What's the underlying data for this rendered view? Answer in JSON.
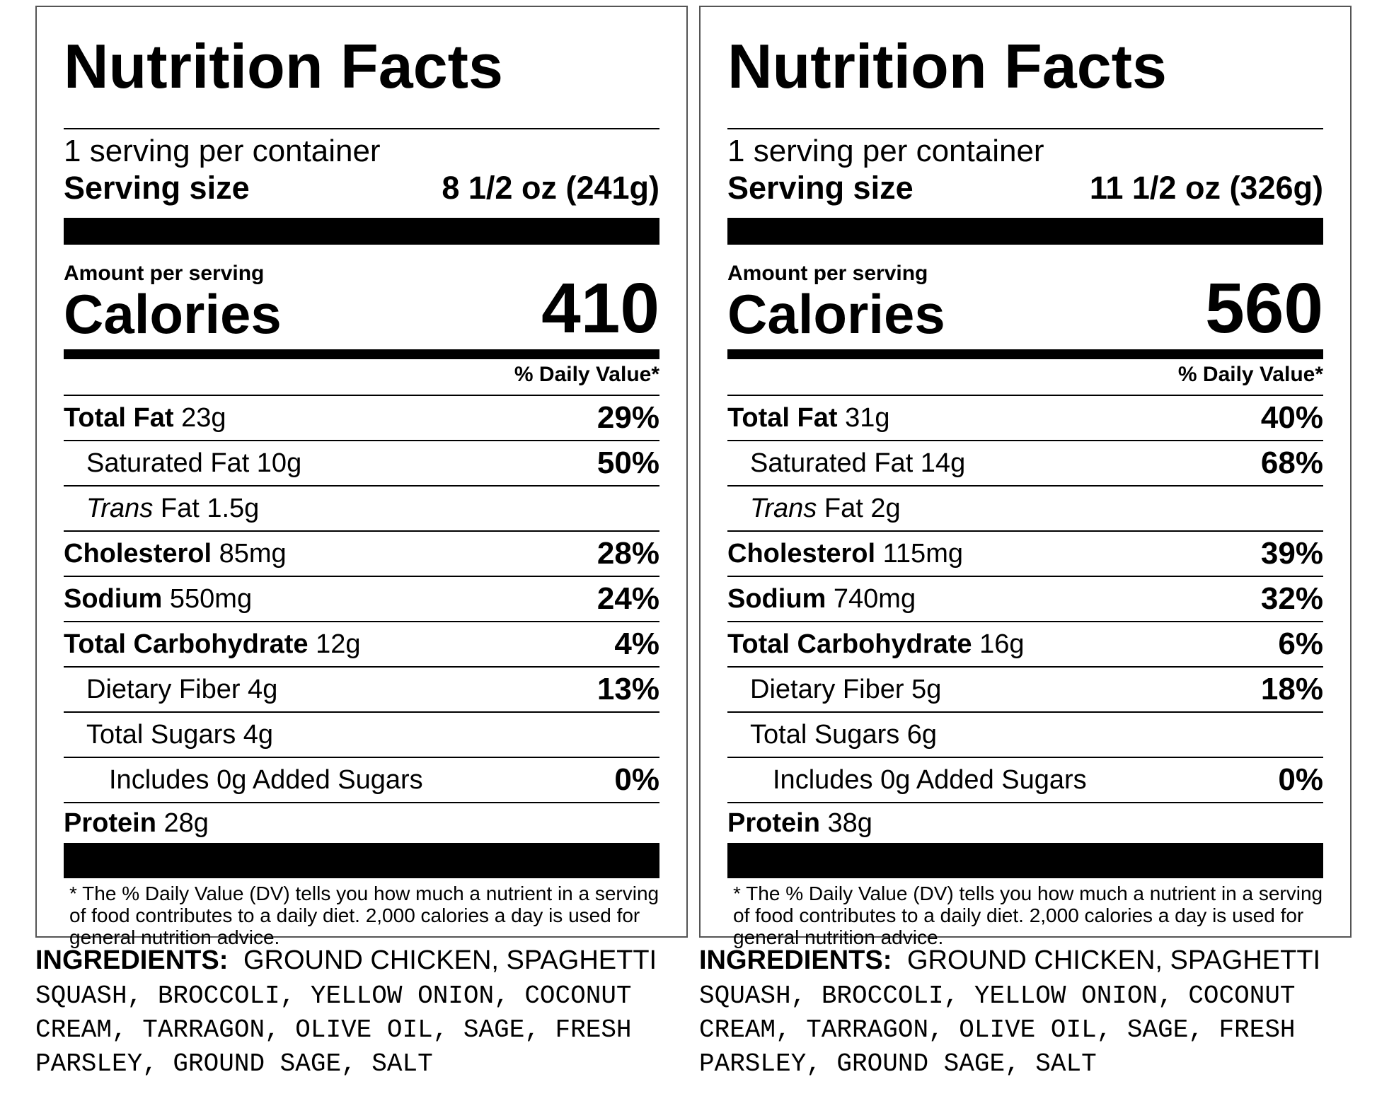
{
  "labels": [
    {
      "title": "Nutrition Facts",
      "servings_per_container": "1 serving per container",
      "serving_size_label": "Serving size",
      "serving_size_value": "8 1/2 oz (241g)",
      "amount_per_serving": "Amount per serving",
      "calories_label": "Calories",
      "calories_value": "410",
      "daily_value_header": "% Daily Value*",
      "total_fat": {
        "label": "Total Fat",
        "amount": "23g",
        "dv": "29%"
      },
      "saturated_fat": {
        "label": "Saturated Fat 10g",
        "dv": "50%"
      },
      "trans_fat": {
        "label_italic": "Trans",
        "label_rest": "Fat 1.5g"
      },
      "cholesterol": {
        "label": "Cholesterol",
        "amount": "85mg",
        "dv": "28%"
      },
      "sodium": {
        "label": "Sodium",
        "amount": "550mg",
        "dv": "24%"
      },
      "total_carbohydrate": {
        "label": "Total Carbohydrate",
        "amount": "12g",
        "dv": "4%"
      },
      "dietary_fiber": {
        "label": "Dietary Fiber 4g",
        "dv": "13%"
      },
      "total_sugars": {
        "label": "Total Sugars 4g"
      },
      "added_sugars": {
        "label": "Includes 0g Added Sugars",
        "dv": "0%"
      },
      "protein": {
        "label": "Protein",
        "amount": "28g"
      },
      "footnote": "* The % Daily Value (DV) tells you how much a nutrient in a serving of food contributes to a daily diet. 2,000 calories a day is used for general nutrition advice.",
      "ingredients_label": "INGREDIENTS:",
      "ingredients_first": "GROUND CHICKEN, SPAGHETTI",
      "ingredients_rest": "SQUASH, BROCCOLI, YELLOW ONION, COCONUT CREAM, TARRAGON, OLIVE OIL, SAGE, FRESH PARSLEY, GROUND SAGE, SALT"
    },
    {
      "title": "Nutrition Facts",
      "servings_per_container": "1 serving per container",
      "serving_size_label": "Serving size",
      "serving_size_value": "11 1/2 oz (326g)",
      "amount_per_serving": "Amount per serving",
      "calories_label": "Calories",
      "calories_value": "560",
      "daily_value_header": "% Daily Value*",
      "total_fat": {
        "label": "Total Fat",
        "amount": "31g",
        "dv": "40%"
      },
      "saturated_fat": {
        "label": "Saturated Fat 14g",
        "dv": "68%"
      },
      "trans_fat": {
        "label_italic": "Trans",
        "label_rest": "Fat 2g"
      },
      "cholesterol": {
        "label": "Cholesterol",
        "amount": "115mg",
        "dv": "39%"
      },
      "sodium": {
        "label": "Sodium",
        "amount": "740mg",
        "dv": "32%"
      },
      "total_carbohydrate": {
        "label": "Total Carbohydrate",
        "amount": "16g",
        "dv": "6%"
      },
      "dietary_fiber": {
        "label": "Dietary Fiber 5g",
        "dv": "18%"
      },
      "total_sugars": {
        "label": "Total Sugars 6g"
      },
      "added_sugars": {
        "label": "Includes 0g Added Sugars",
        "dv": "0%"
      },
      "protein": {
        "label": "Protein",
        "amount": "38g"
      },
      "footnote": "* The % Daily Value (DV) tells you how much a nutrient in a serving of food contributes to a daily diet. 2,000 calories a day is used for general nutrition advice.",
      "ingredients_label": "INGREDIENTS:",
      "ingredients_first": "GROUND CHICKEN, SPAGHETTI",
      "ingredients_rest": "SQUASH, BROCCOLI, YELLOW ONION, COCONUT CREAM, TARRAGON, OLIVE OIL, SAGE, FRESH PARSLEY, GROUND SAGE, SALT"
    }
  ]
}
